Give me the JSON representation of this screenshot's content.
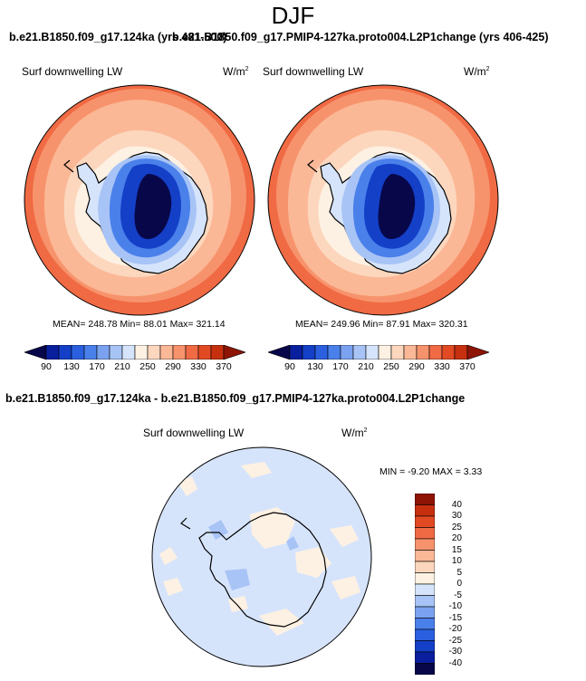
{
  "figure": {
    "season": "DJF",
    "header_left": "b.e21.B1850.f09_g17.124ka (yrs 481-500)",
    "header_right": "b.e21.B1850.f09_g17.PMIP4-127ka.proto004.L2P1change (yrs 406-425)",
    "header_diff": "b.e21.B1850.f09_g17.124ka - b.e21.B1850.f09_g17.PMIP4-127ka.proto004.L2P1change"
  },
  "panels": [
    {
      "variable": "Surf downwelling LW",
      "units": "W/m",
      "units_sup": "2",
      "stats": "MEAN= 248.78  Min=  88.01  Max= 321.14"
    },
    {
      "variable": "Surf downwelling LW",
      "units": "W/m",
      "units_sup": "2",
      "stats": "MEAN= 249.96  Min=  87.91  Max= 320.31"
    }
  ],
  "diff_panel": {
    "variable": "Surf downwelling LW",
    "units": "W/m",
    "units_sup": "2",
    "stats": "MIN =  -9.20 MAX =   3.33"
  },
  "colorbar": {
    "ticks": [
      "90",
      "130",
      "170",
      "210",
      "250",
      "290",
      "330",
      "370"
    ],
    "colors": [
      "#08074a",
      "#0a1f9e",
      "#1440c8",
      "#2a60e0",
      "#4a80ea",
      "#7aa2f0",
      "#a8c4f6",
      "#d6e4fb",
      "#fdf1e3",
      "#fcd7be",
      "#fbb896",
      "#f7936c",
      "#f06a44",
      "#e24a24",
      "#c7300f",
      "#8e1406"
    ]
  },
  "diff_colorbar": {
    "ticks": [
      "40",
      "30",
      "25",
      "20",
      "15",
      "10",
      "5",
      "0",
      "-5",
      "-10",
      "-15",
      "-20",
      "-25",
      "-30",
      "-40"
    ],
    "colors": [
      "#8e1406",
      "#c7300f",
      "#e24a24",
      "#f06a44",
      "#f7936c",
      "#fbb896",
      "#fcd7be",
      "#fdf1e3",
      "#d6e4fb",
      "#a8c4f6",
      "#7aa2f0",
      "#4a80ea",
      "#2a60e0",
      "#1440c8",
      "#0a1f9e",
      "#08074a"
    ]
  }
}
